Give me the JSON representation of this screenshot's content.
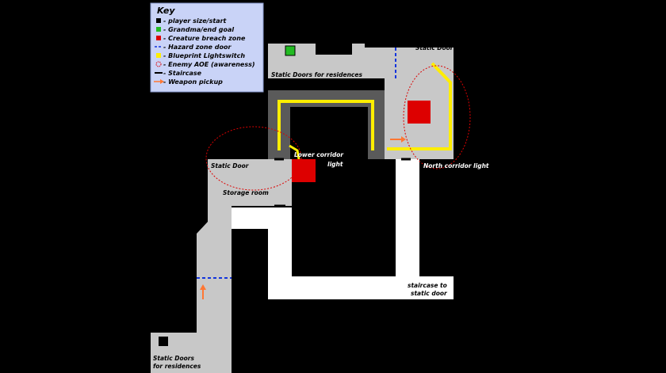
{
  "key": {
    "title": "Key",
    "items": [
      {
        "label": "- player size/start",
        "swatch": "square",
        "color": "#000000"
      },
      {
        "label": "- Grandma/end goal",
        "swatch": "square",
        "color": "#22bb22"
      },
      {
        "label": "- Creature breach zone",
        "swatch": "square",
        "color": "#dd0000"
      },
      {
        "label": "- Hazard zone door",
        "swatch": "dash",
        "color": "#1133dd"
      },
      {
        "label": "- Blueprint Lightswitch",
        "swatch": "square",
        "color": "#ffee00"
      },
      {
        "label": "- Enemy AOE (awareness)",
        "swatch": "circle",
        "color": "#dd0000"
      },
      {
        "label": "- Staircase",
        "swatch": "line",
        "color": "#000000"
      },
      {
        "label": "- Weapon pickup",
        "swatch": "arrow",
        "color": "#ff7733"
      }
    ]
  },
  "labels": {
    "static_door_top": "Static Door",
    "static_doors_residences_top": "Static Doors for residences",
    "lower_corridor_light_1": "Lower corridor",
    "lower_corridor_light_2": "light",
    "north_corridor_light": "North corridor light",
    "static_door_left": "Static Door",
    "storage_room": "Storage room",
    "staircase_1": "staircase to",
    "staircase_2": "static door",
    "static_doors_bottom_1": "Static Doors",
    "static_doors_bottom_2": "for residences"
  },
  "colors": {
    "background": "#000000",
    "floor": "#c8c8c8",
    "corridor": "#ffffff",
    "inner_wall": "#5a5a5a",
    "lightswitch_path": "#ffee00",
    "breach": "#dd0000",
    "goal": "#22bb22",
    "hazard_door": "#1133dd",
    "weapon": "#ff7733",
    "key_bg": "#c9d3f7"
  },
  "icons": {
    "weapon": "arrow-icon",
    "player": "square-icon"
  }
}
